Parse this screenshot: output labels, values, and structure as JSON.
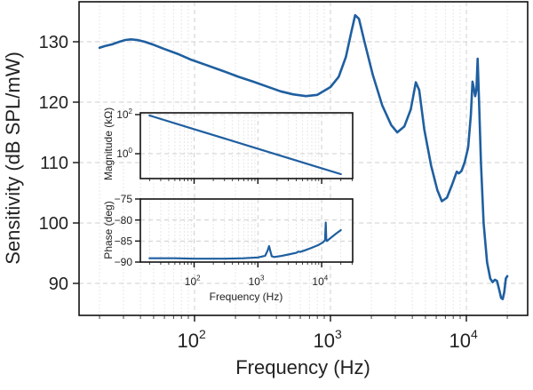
{
  "chart_data": [
    {
      "id": "main",
      "type": "line",
      "title": "",
      "xlabel": "Frequency (Hz)",
      "ylabel": "Sensitivity (dB SPL/mW)",
      "xscale": "log",
      "xlim": [
        14,
        30000
      ],
      "ylim": [
        84,
        137
      ],
      "xticks": [
        100,
        1000,
        10000
      ],
      "xtick_labels": [
        {
          "base": "10",
          "exp": "2"
        },
        {
          "base": "10",
          "exp": "3"
        },
        {
          "base": "10",
          "exp": "4"
        }
      ],
      "yticks": [
        90,
        100,
        110,
        120,
        130
      ],
      "ytick_labels": [
        "90",
        "100",
        "110",
        "120",
        "130"
      ],
      "grid": true,
      "color": "#1f5fa0",
      "series": [
        {
          "name": "Sensitivity",
          "x": [
            20,
            22,
            25,
            28,
            31,
            34,
            38,
            43,
            50,
            60,
            75,
            95,
            120,
            160,
            210,
            270,
            340,
            430,
            530,
            660,
            800,
            1000,
            1150,
            1300,
            1420,
            1520,
            1620,
            1780,
            2050,
            2400,
            2800,
            3100,
            3500,
            3900,
            4250,
            4500,
            4900,
            5500,
            6100,
            6600,
            7200,
            7900,
            8500,
            8800,
            9200,
            9700,
            10300,
            10800,
            11100,
            11350,
            11600,
            11850,
            12100,
            12400,
            12800,
            13400,
            14200,
            15000,
            15600,
            16200,
            16800,
            17500,
            18000,
            18500,
            19000,
            19500,
            20000
          ],
          "y": [
            129.0,
            129.3,
            129.6,
            130.0,
            130.3,
            130.4,
            130.3,
            130.0,
            129.5,
            128.8,
            128.0,
            127.0,
            126.2,
            125.2,
            124.2,
            123.4,
            122.6,
            121.8,
            121.3,
            121.0,
            121.2,
            122.5,
            124.2,
            127.5,
            131.5,
            134.4,
            133.8,
            130.0,
            124.5,
            119.5,
            116.2,
            115.0,
            116.0,
            118.8,
            123.3,
            122.0,
            115.5,
            109.5,
            105.5,
            103.6,
            104.2,
            106.5,
            108.5,
            108.2,
            108.6,
            110.0,
            112.5,
            118.0,
            123.4,
            122.3,
            121.0,
            122.0,
            127.2,
            120.0,
            110.0,
            100.0,
            93.5,
            90.8,
            90.2,
            90.6,
            90.4,
            88.8,
            87.6,
            87.4,
            88.5,
            90.8,
            91.2
          ]
        }
      ]
    },
    {
      "id": "inset-magnitude",
      "type": "line",
      "xlabel": "",
      "ylabel": "Magnitude (kΩ)",
      "xscale": "log",
      "yscale": "log",
      "xlim": [
        14,
        30000
      ],
      "ylim": [
        0.01,
        130
      ],
      "xticks": [
        100,
        1000,
        10000
      ],
      "yticks": [
        1,
        100
      ],
      "ytick_labels": [
        {
          "base": "10",
          "exp": "0"
        },
        {
          "base": "10",
          "exp": "2"
        }
      ],
      "grid": true,
      "color": "#1f5fa0",
      "series": [
        {
          "name": "Magnitude",
          "x": [
            20,
            100,
            1000,
            10000,
            20000
          ],
          "y": [
            90,
            18,
            1.8,
            0.18,
            0.09
          ]
        }
      ]
    },
    {
      "id": "inset-phase",
      "type": "line",
      "xlabel": "Frequency (Hz)",
      "ylabel": "Phase (deg)",
      "xscale": "log",
      "xlim": [
        14,
        30000
      ],
      "ylim": [
        -90,
        -75
      ],
      "xticks": [
        100,
        1000,
        10000
      ],
      "xtick_labels": [
        {
          "base": "10",
          "exp": "2"
        },
        {
          "base": "10",
          "exp": "3"
        },
        {
          "base": "10",
          "exp": "4"
        }
      ],
      "yticks": [
        -90,
        -85,
        -80,
        -75
      ],
      "ytick_labels": [
        "−90",
        "−85",
        "−80",
        "−75"
      ],
      "grid": true,
      "color": "#1f5fa0",
      "series": [
        {
          "name": "Phase",
          "x": [
            20,
            50,
            100,
            300,
            600,
            1000,
            1300,
            1420,
            1500,
            1560,
            1650,
            1800,
            2200,
            3000,
            4000,
            4300,
            4600,
            5500,
            7000,
            9000,
            10500,
            11300,
            11600,
            11800,
            12100,
            12500,
            14000,
            17000,
            20000
          ],
          "y": [
            -89.1,
            -89.1,
            -89.2,
            -89.2,
            -89.1,
            -88.9,
            -88.5,
            -87.3,
            -86.2,
            -87.3,
            -88.6,
            -88.8,
            -88.6,
            -88.2,
            -87.8,
            -87.5,
            -87.6,
            -87.2,
            -86.6,
            -85.9,
            -85.3,
            -84.8,
            -80.6,
            -84.6,
            -85.0,
            -84.8,
            -84.2,
            -83.2,
            -82.4
          ]
        }
      ]
    }
  ]
}
